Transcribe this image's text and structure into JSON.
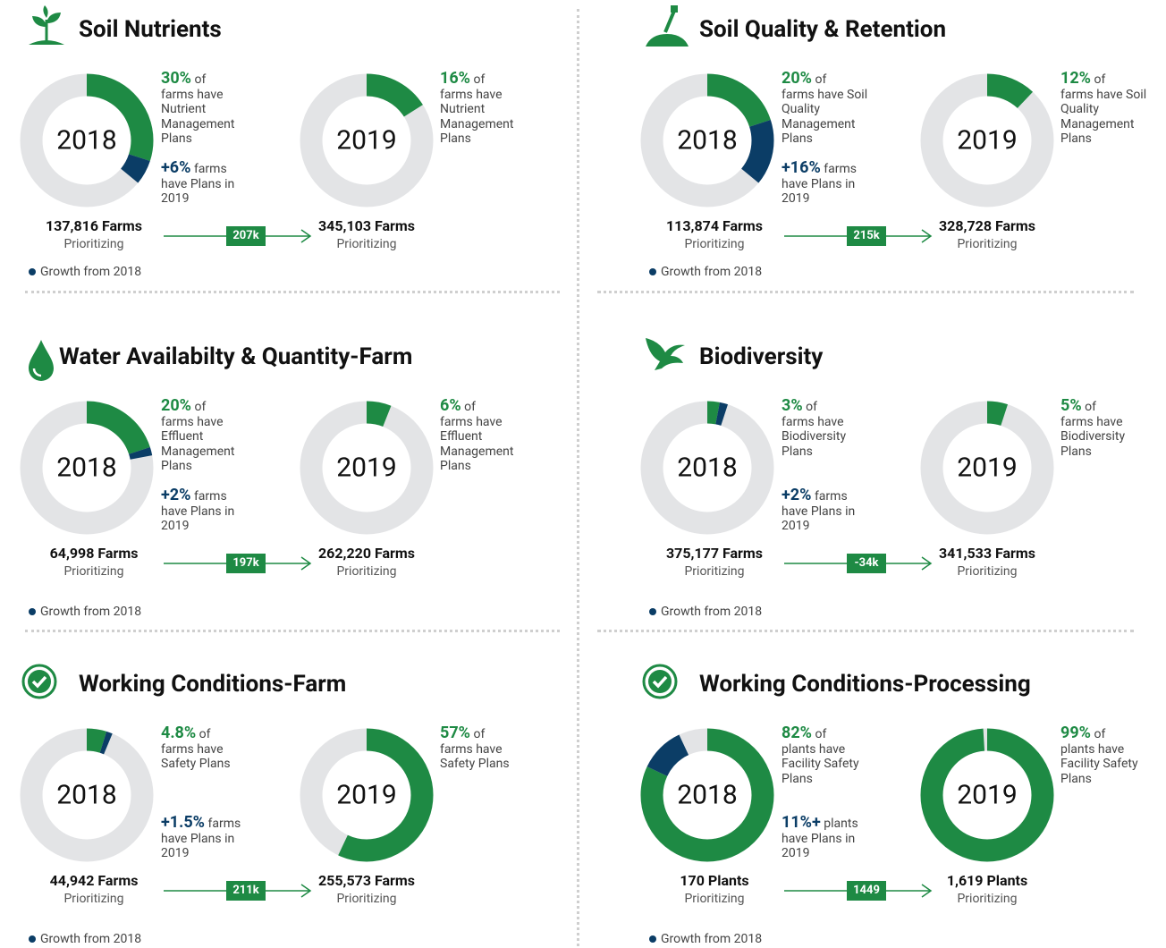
{
  "panels": [
    {
      "title": "Soil Nutrients",
      "change": "207k",
      "legend": "Growth from 2018",
      "donuts": [
        {
          "year": "2018",
          "share": 30,
          "share_label": "30%",
          "share_suffix": "of",
          "share_desc": "farms have Nutrient Management Plans",
          "growth": 6,
          "growth_label": "+6%",
          "growth_desc": "farms have Plans in 2019",
          "count": "137,816 Farms",
          "count_desc": "Prioritizing"
        },
        {
          "year": "2019",
          "share": 16,
          "share_label": "16%",
          "share_suffix": "of",
          "share_desc": "farms have Nutrient Management Plans",
          "count": "345,103 Farms",
          "count_desc": "Prioritizing"
        }
      ]
    },
    {
      "title": "Soil Quality & Retention",
      "change": "215k",
      "legend": "Growth from 2018",
      "donuts": [
        {
          "year": "2018",
          "share": 20,
          "share_label": "20%",
          "share_suffix": "of",
          "share_desc": "farms have Soil Quality Management Plans",
          "growth": 16,
          "growth_label": "+16%",
          "growth_desc": "farms have Plans in 2019",
          "count": "113,874 Farms",
          "count_desc": "Prioritizing"
        },
        {
          "year": "2019",
          "share": 12,
          "share_label": "12%",
          "share_suffix": "of",
          "share_desc": "farms have Soil Quality Management Plans",
          "count": "328,728 Farms",
          "count_desc": "Prioritizing"
        }
      ]
    },
    {
      "title": "Water Availabilty & Quantity-Farm",
      "change": "197k",
      "legend": "Growth from 2018",
      "donuts": [
        {
          "year": "2018",
          "share": 20,
          "share_label": "20%",
          "share_suffix": "of",
          "share_desc": "farms have Effluent Management Plans",
          "growth": 2,
          "growth_label": "+2%",
          "growth_desc": "farms have Plans in 2019",
          "count": "64,998 Farms",
          "count_desc": "Prioritizing"
        },
        {
          "year": "2019",
          "share": 6,
          "share_label": "6%",
          "share_suffix": "of",
          "share_desc": "farms have Effluent Management Plans",
          "count": "262,220 Farms",
          "count_desc": "Prioritizing"
        }
      ]
    },
    {
      "title": "Biodiversity",
      "change": "-34k",
      "legend": "Growth from 2018",
      "donuts": [
        {
          "year": "2018",
          "share": 3,
          "share_label": "3%",
          "share_suffix": "of",
          "share_desc": "farms have Biodiversity Plans",
          "growth": 2,
          "growth_label": "+2%",
          "growth_desc": "farms have Plans in 2019",
          "count": "375,177 Farms",
          "count_desc": "Prioritizing"
        },
        {
          "year": "2019",
          "share": 5,
          "share_label": "5%",
          "share_suffix": "of",
          "share_desc": "farms have Biodiversity Plans",
          "count": "341,533 Farms",
          "count_desc": "Prioritizing"
        }
      ]
    },
    {
      "title": "Working Conditions-Farm",
      "change": "211k",
      "legend": "Growth from 2018",
      "donuts": [
        {
          "year": "2018",
          "share": 4.8,
          "share_label": "4.8%",
          "share_suffix": "of",
          "share_desc": "farms have Safety Plans",
          "growth": 1.5,
          "growth_label": "+1.5%",
          "growth_desc": "farms have Plans in 2019",
          "count": "44,942 Farms",
          "count_desc": "Prioritizing"
        },
        {
          "year": "2019",
          "share": 57,
          "share_label": "57%",
          "share_suffix": "of",
          "share_desc": "farms have Safety Plans",
          "count": "255,573 Farms",
          "count_desc": "Prioritizing"
        }
      ]
    },
    {
      "title": "Working Conditions-Processing",
      "change": "1449",
      "legend": "Growth from 2018",
      "donuts": [
        {
          "year": "2018",
          "share": 82,
          "share_label": "82%",
          "share_suffix": "of",
          "share_desc": "plants have Facility Safety Plans",
          "growth": 11,
          "growth_label": "11%+",
          "growth_desc": "plants have Plans in 2019",
          "count": "170 Plants",
          "count_desc": "Prioritizing"
        },
        {
          "year": "2019",
          "share": 99,
          "share_label": "99%",
          "share_suffix": "of",
          "share_desc": "plants have Facility Safety Plans",
          "count": "1,619 Plants",
          "count_desc": "Prioritizing"
        }
      ]
    }
  ]
}
